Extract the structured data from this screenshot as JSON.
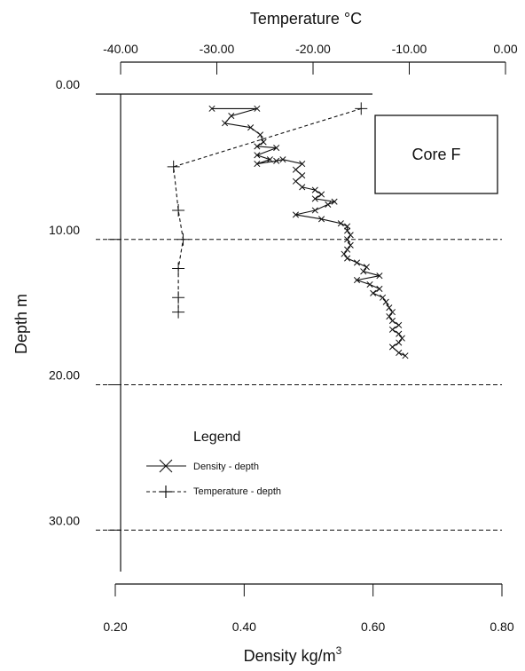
{
  "chart_data": {
    "type": "line",
    "label_box": "Core F",
    "top_axis": {
      "label": "Temperature °C",
      "range": [
        -40,
        0
      ],
      "ticks": [
        -40,
        -30,
        -20,
        -10,
        0
      ],
      "tick_labels": [
        "-40.00",
        "-30.00",
        "-20.00",
        "-10.00",
        "0.00"
      ]
    },
    "bottom_axis": {
      "label": "Density kg/m",
      "label_superscript": "3",
      "range": [
        0.2,
        0.8
      ],
      "ticks": [
        0.2,
        0.4,
        0.6,
        0.8
      ],
      "tick_labels": [
        "0.20",
        "0.40",
        "0.60",
        "0.80"
      ]
    },
    "y_axis": {
      "label": "Depth m",
      "range": [
        0,
        32
      ],
      "inverted": true,
      "ticks": [
        0,
        10,
        20,
        30
      ],
      "tick_labels": [
        "0.00",
        "10.00",
        "20.00",
        "30.00"
      ]
    },
    "gridlines_y": [
      10,
      20,
      30
    ],
    "legend": {
      "title": "Legend",
      "position": "lower-left",
      "entries": [
        "Density - depth",
        "Temperature - depth"
      ]
    },
    "series": [
      {
        "name": "Density - depth",
        "axis": "bottom",
        "marker": "x",
        "line": "solid",
        "points": [
          [
            0.35,
            1.0
          ],
          [
            0.42,
            1.0
          ],
          [
            0.38,
            1.5
          ],
          [
            0.37,
            2.0
          ],
          [
            0.41,
            2.3
          ],
          [
            0.425,
            2.8
          ],
          [
            0.43,
            3.3
          ],
          [
            0.42,
            3.6
          ],
          [
            0.45,
            3.7
          ],
          [
            0.42,
            4.2
          ],
          [
            0.44,
            4.5
          ],
          [
            0.42,
            4.8
          ],
          [
            0.45,
            4.6
          ],
          [
            0.46,
            4.5
          ],
          [
            0.49,
            4.8
          ],
          [
            0.48,
            5.2
          ],
          [
            0.49,
            5.6
          ],
          [
            0.48,
            6.0
          ],
          [
            0.49,
            6.4
          ],
          [
            0.51,
            6.6
          ],
          [
            0.52,
            6.9
          ],
          [
            0.51,
            7.2
          ],
          [
            0.54,
            7.4
          ],
          [
            0.53,
            7.6
          ],
          [
            0.51,
            8.0
          ],
          [
            0.48,
            8.3
          ],
          [
            0.52,
            8.6
          ],
          [
            0.55,
            8.9
          ],
          [
            0.56,
            9.1
          ],
          [
            0.56,
            9.4
          ],
          [
            0.565,
            9.7
          ],
          [
            0.56,
            10.0
          ],
          [
            0.565,
            10.4
          ],
          [
            0.56,
            10.7
          ],
          [
            0.555,
            11.0
          ],
          [
            0.56,
            11.3
          ],
          [
            0.575,
            11.6
          ],
          [
            0.59,
            11.9
          ],
          [
            0.585,
            12.2
          ],
          [
            0.61,
            12.5
          ],
          [
            0.575,
            12.8
          ],
          [
            0.595,
            13.1
          ],
          [
            0.61,
            13.4
          ],
          [
            0.6,
            13.7
          ],
          [
            0.615,
            14.0
          ],
          [
            0.62,
            14.3
          ],
          [
            0.625,
            14.7
          ],
          [
            0.63,
            15.0
          ],
          [
            0.625,
            15.3
          ],
          [
            0.63,
            15.6
          ],
          [
            0.64,
            15.9
          ],
          [
            0.63,
            16.2
          ],
          [
            0.64,
            16.5
          ],
          [
            0.645,
            16.8
          ],
          [
            0.64,
            17.1
          ],
          [
            0.63,
            17.4
          ],
          [
            0.64,
            17.8
          ],
          [
            0.65,
            18.0
          ]
        ]
      },
      {
        "name": "Temperature - depth",
        "axis": "top",
        "marker": "+",
        "line": "dashed",
        "points": [
          [
            -15.0,
            1.0
          ],
          [
            -34.5,
            5.0
          ],
          [
            -34.0,
            8.0
          ],
          [
            -33.5,
            10.0
          ],
          [
            -34.0,
            12.0
          ],
          [
            -34.0,
            14.0
          ],
          [
            -34.0,
            15.0
          ]
        ]
      }
    ]
  }
}
